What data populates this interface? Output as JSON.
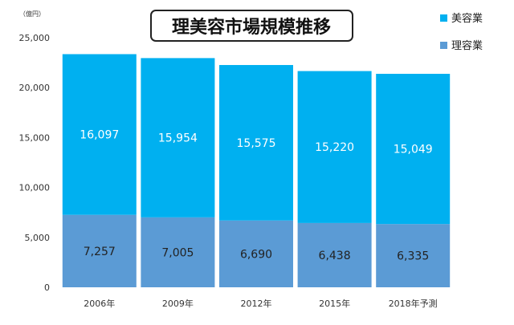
{
  "chart_data": {
    "type": "bar",
    "stacked": true,
    "title": "理美容市場規模推移",
    "unit_label": "（億円）",
    "categories": [
      "2006年",
      "2009年",
      "2012年",
      "2015年",
      "2018年予測"
    ],
    "series": [
      {
        "name": "理容業",
        "color": "#5b9bd5",
        "values": [
          7257,
          7005,
          6690,
          6438,
          6335
        ]
      },
      {
        "name": "美容業",
        "color": "#00b0f0",
        "values": [
          16097,
          15954,
          15575,
          15220,
          15049
        ]
      }
    ],
    "value_labels": {
      "理容業": [
        "7,257",
        "7,005",
        "6,690",
        "6,438",
        "6,335"
      ],
      "美容業": [
        "16,097",
        "15,954",
        "15,575",
        "15,220",
        "15,049"
      ]
    },
    "y_ticks": [
      "0",
      "5,000",
      "10,000",
      "15,000",
      "20,000",
      "25,000"
    ],
    "ylim": [
      0,
      25000
    ],
    "grid": false,
    "legend_position": "top-right"
  }
}
